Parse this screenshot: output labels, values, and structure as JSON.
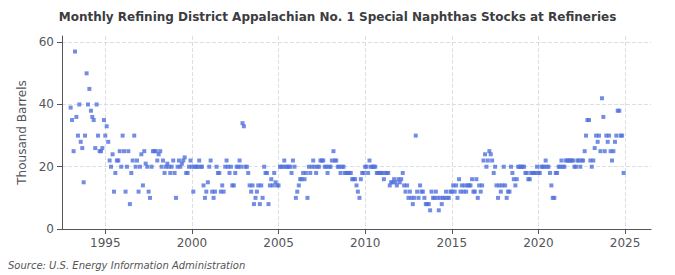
{
  "chart_data": {
    "type": "scatter",
    "title": "Monthly Refining District Appalachian No. 1 Special Naphthas Stocks at Refineries",
    "ylabel": "Thousand Barrels",
    "annotation": "Source: U.S. Energy Information Administration",
    "marker": "square",
    "grid": true,
    "xlim": [
      1992.5,
      2026.5
    ],
    "xticks": [
      1995,
      2000,
      2005,
      2010,
      2015,
      2020,
      2025
    ],
    "ylim": [
      0,
      62
    ],
    "yticks": [
      0,
      20,
      40,
      60
    ],
    "x": [
      1993.0,
      1993.08,
      1993.17,
      1993.25,
      1993.33,
      1993.42,
      1993.5,
      1993.58,
      1993.67,
      1993.75,
      1993.83,
      1993.92,
      1994.0,
      1994.08,
      1994.17,
      1994.25,
      1994.33,
      1994.42,
      1994.5,
      1994.58,
      1994.67,
      1994.75,
      1994.83,
      1994.92,
      1995.0,
      1995.08,
      1995.17,
      1995.25,
      1995.33,
      1995.42,
      1995.5,
      1995.58,
      1995.67,
      1995.75,
      1995.83,
      1995.92,
      1996.0,
      1996.08,
      1996.17,
      1996.25,
      1996.33,
      1996.42,
      1996.5,
      1996.58,
      1996.67,
      1996.75,
      1996.83,
      1996.92,
      1997.0,
      1997.08,
      1997.17,
      1997.25,
      1997.33,
      1997.42,
      1997.5,
      1997.58,
      1997.67,
      1997.75,
      1997.83,
      1997.92,
      1998.0,
      1998.08,
      1998.17,
      1998.25,
      1998.33,
      1998.42,
      1998.5,
      1998.58,
      1998.67,
      1998.75,
      1998.83,
      1998.92,
      1999.0,
      1999.08,
      1999.17,
      1999.25,
      1999.33,
      1999.42,
      1999.5,
      1999.58,
      1999.67,
      1999.75,
      1999.83,
      1999.92,
      2000.0,
      2000.08,
      2000.17,
      2000.25,
      2000.33,
      2000.42,
      2000.5,
      2000.58,
      2000.67,
      2000.75,
      2000.83,
      2000.92,
      2001.0,
      2001.08,
      2001.17,
      2001.25,
      2001.33,
      2001.42,
      2001.5,
      2001.58,
      2001.67,
      2001.75,
      2001.83,
      2001.92,
      2002.0,
      2002.08,
      2002.17,
      2002.25,
      2002.33,
      2002.42,
      2002.5,
      2002.58,
      2002.67,
      2002.75,
      2002.83,
      2002.92,
      2003.0,
      2003.08,
      2003.17,
      2003.25,
      2003.33,
      2003.42,
      2003.5,
      2003.58,
      2003.67,
      2003.75,
      2003.83,
      2003.92,
      2004.0,
      2004.08,
      2004.17,
      2004.25,
      2004.33,
      2004.42,
      2004.5,
      2004.58,
      2004.67,
      2004.75,
      2004.83,
      2004.92,
      2005.0,
      2005.08,
      2005.17,
      2005.25,
      2005.33,
      2005.42,
      2005.5,
      2005.58,
      2005.67,
      2005.75,
      2005.83,
      2005.92,
      2006.0,
      2006.08,
      2006.17,
      2006.25,
      2006.33,
      2006.42,
      2006.5,
      2006.58,
      2006.67,
      2006.75,
      2006.83,
      2006.92,
      2007.0,
      2007.08,
      2007.17,
      2007.25,
      2007.33,
      2007.42,
      2007.5,
      2007.58,
      2007.67,
      2007.75,
      2007.83,
      2007.92,
      2008.0,
      2008.08,
      2008.17,
      2008.25,
      2008.33,
      2008.42,
      2008.5,
      2008.58,
      2008.67,
      2008.75,
      2008.83,
      2008.92,
      2009.0,
      2009.08,
      2009.17,
      2009.25,
      2009.33,
      2009.42,
      2009.5,
      2009.58,
      2009.67,
      2009.75,
      2009.83,
      2009.92,
      2010.0,
      2010.08,
      2010.17,
      2010.25,
      2010.33,
      2010.42,
      2010.5,
      2010.58,
      2010.67,
      2010.75,
      2010.83,
      2010.92,
      2011.0,
      2011.08,
      2011.17,
      2011.25,
      2011.33,
      2011.42,
      2011.5,
      2011.58,
      2011.67,
      2011.75,
      2011.83,
      2011.92,
      2012.0,
      2012.08,
      2012.17,
      2012.25,
      2012.33,
      2012.42,
      2012.5,
      2012.58,
      2012.67,
      2012.75,
      2012.83,
      2012.92,
      2013.0,
      2013.08,
      2013.17,
      2013.25,
      2013.33,
      2013.42,
      2013.5,
      2013.58,
      2013.67,
      2013.75,
      2013.83,
      2013.92,
      2014.0,
      2014.08,
      2014.17,
      2014.25,
      2014.33,
      2014.42,
      2014.5,
      2014.58,
      2014.67,
      2014.75,
      2014.83,
      2014.92,
      2015.0,
      2015.08,
      2015.17,
      2015.25,
      2015.33,
      2015.42,
      2015.5,
      2015.58,
      2015.67,
      2015.75,
      2015.83,
      2015.92,
      2016.0,
      2016.08,
      2016.17,
      2016.25,
      2016.33,
      2016.42,
      2016.5,
      2016.58,
      2016.67,
      2016.75,
      2016.83,
      2016.92,
      2017.0,
      2017.08,
      2017.17,
      2017.25,
      2017.33,
      2017.42,
      2017.5,
      2017.58,
      2017.67,
      2017.75,
      2017.83,
      2017.92,
      2018.0,
      2018.08,
      2018.17,
      2018.25,
      2018.33,
      2018.42,
      2018.5,
      2018.58,
      2018.67,
      2018.75,
      2018.83,
      2018.92,
      2019.0,
      2019.08,
      2019.17,
      2019.25,
      2019.33,
      2019.42,
      2019.5,
      2019.58,
      2019.67,
      2019.75,
      2019.83,
      2019.92,
      2020.0,
      2020.08,
      2020.17,
      2020.25,
      2020.33,
      2020.42,
      2020.5,
      2020.58,
      2020.67,
      2020.75,
      2020.83,
      2020.92,
      2021.0,
      2021.08,
      2021.17,
      2021.25,
      2021.33,
      2021.42,
      2021.5,
      2021.58,
      2021.67,
      2021.75,
      2021.83,
      2021.92,
      2022.0,
      2022.08,
      2022.17,
      2022.25,
      2022.33,
      2022.42,
      2022.5,
      2022.58,
      2022.67,
      2022.75,
      2022.83,
      2022.92,
      2023.0,
      2023.08,
      2023.17,
      2023.25,
      2023.33,
      2023.42,
      2023.5,
      2023.58,
      2023.67,
      2023.75,
      2023.83,
      2023.92,
      2024.0,
      2024.08,
      2024.17,
      2024.25,
      2024.33,
      2024.42,
      2024.5,
      2024.58,
      2024.67,
      2024.75,
      2024.83,
      2024.92
    ],
    "values": [
      39,
      35,
      25,
      57,
      36,
      30,
      40,
      28,
      26,
      15,
      30,
      50,
      40,
      45,
      38,
      36,
      35,
      26,
      40,
      30,
      25,
      25,
      26,
      35,
      30,
      33,
      28,
      22,
      20,
      24,
      12,
      18,
      22,
      22,
      25,
      20,
      30,
      25,
      12,
      20,
      25,
      8,
      18,
      22,
      30,
      20,
      22,
      12,
      20,
      24,
      14,
      25,
      21,
      20,
      12,
      10,
      20,
      25,
      25,
      25,
      22,
      24,
      25,
      20,
      22,
      18,
      20,
      21,
      20,
      18,
      20,
      22,
      18,
      10,
      20,
      22,
      20,
      21,
      22,
      23,
      18,
      18,
      20,
      22,
      20,
      12,
      20,
      20,
      20,
      22,
      20,
      20,
      14,
      10,
      12,
      15,
      20,
      22,
      12,
      10,
      12,
      20,
      18,
      18,
      12,
      14,
      12,
      20,
      22,
      20,
      18,
      20,
      14,
      14,
      18,
      20,
      20,
      22,
      20,
      34,
      33,
      20,
      20,
      18,
      14,
      12,
      14,
      8,
      10,
      12,
      14,
      8,
      14,
      10,
      20,
      18,
      18,
      8,
      14,
      16,
      14,
      18,
      15,
      14,
      14,
      20,
      20,
      20,
      22,
      20,
      20,
      20,
      20,
      18,
      22,
      20,
      10,
      12,
      14,
      16,
      16,
      18,
      16,
      18,
      10,
      20,
      18,
      20,
      22,
      20,
      18,
      20,
      20,
      22,
      22,
      22,
      20,
      20,
      18,
      20,
      20,
      22,
      25,
      22,
      22,
      20,
      20,
      18,
      20,
      20,
      18,
      18,
      18,
      18,
      18,
      16,
      16,
      16,
      14,
      12,
      10,
      16,
      18,
      18,
      20,
      20,
      18,
      22,
      20,
      20,
      20,
      20,
      18,
      18,
      18,
      18,
      18,
      16,
      18,
      18,
      18,
      14,
      15,
      15,
      16,
      15,
      14,
      16,
      15,
      16,
      18,
      14,
      12,
      14,
      10,
      12,
      10,
      8,
      10,
      30,
      12,
      10,
      14,
      12,
      12,
      10,
      8,
      8,
      8,
      6,
      12,
      10,
      10,
      12,
      10,
      6,
      10,
      8,
      10,
      10,
      12,
      10,
      10,
      12,
      12,
      14,
      12,
      14,
      10,
      16,
      12,
      14,
      12,
      14,
      12,
      14,
      14,
      14,
      16,
      12,
      12,
      16,
      10,
      14,
      12,
      14,
      22,
      24,
      20,
      22,
      25,
      24,
      22,
      18,
      20,
      14,
      10,
      14,
      12,
      14,
      20,
      14,
      10,
      12,
      12,
      20,
      18,
      16,
      14,
      16,
      20,
      20,
      20,
      20,
      20,
      18,
      18,
      16,
      16,
      18,
      18,
      18,
      18,
      20,
      18,
      18,
      20,
      20,
      20,
      22,
      20,
      20,
      18,
      14,
      10,
      10,
      18,
      18,
      20,
      20,
      22,
      20,
      20,
      22,
      22,
      22,
      22,
      22,
      22,
      20,
      20,
      22,
      22,
      20,
      22,
      22,
      25,
      30,
      35,
      35,
      22,
      20,
      22,
      26,
      30,
      28,
      30,
      25,
      42,
      36,
      25,
      30,
      28,
      30,
      25,
      22,
      25,
      28,
      30,
      38,
      38,
      30,
      30,
      18
    ]
  }
}
